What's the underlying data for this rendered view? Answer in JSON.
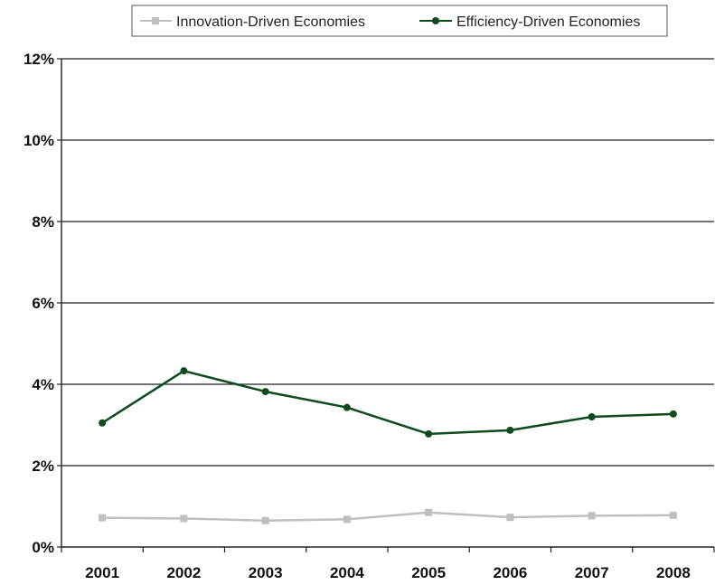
{
  "chart_data": {
    "type": "line",
    "title": "",
    "xlabel": "",
    "ylabel": "",
    "categories": [
      "2001",
      "2002",
      "2003",
      "2004",
      "2005",
      "2006",
      "2007",
      "2008"
    ],
    "ylim": [
      0,
      12
    ],
    "yticks": [
      "0%",
      "2%",
      "4%",
      "6%",
      "8%",
      "10%",
      "12%"
    ],
    "grid": true,
    "legend": "top",
    "series": [
      {
        "name": "Innovation-Driven Economies",
        "color": "#bfbfbf",
        "marker": "square",
        "values": [
          0.72,
          0.7,
          0.65,
          0.68,
          0.85,
          0.73,
          0.77,
          0.78
        ]
      },
      {
        "name": "Efficiency-Driven Economies",
        "color": "#0d4a1e",
        "marker": "circle",
        "values": [
          3.05,
          4.33,
          3.82,
          3.43,
          2.78,
          2.87,
          3.2,
          3.27
        ]
      }
    ]
  }
}
